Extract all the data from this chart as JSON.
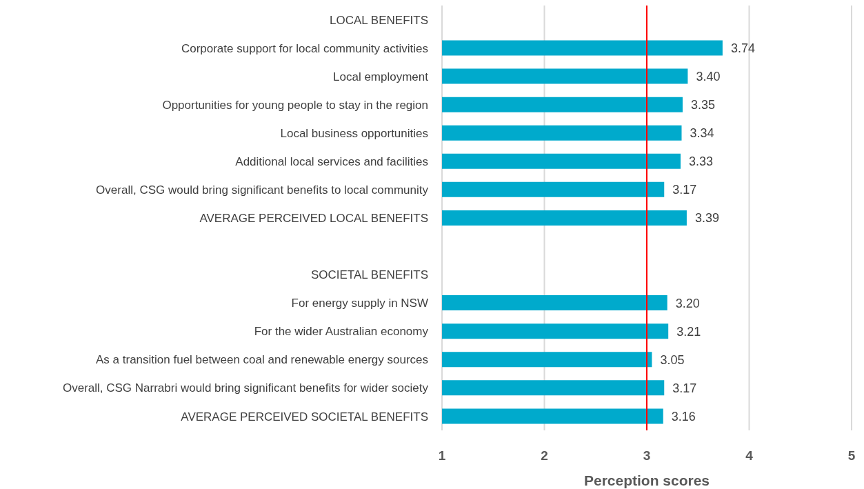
{
  "chart_data": {
    "type": "bar",
    "orientation": "horizontal",
    "categories": [
      "LOCAL BENEFITS",
      "Corporate support for local community activities",
      "Local employment",
      "Opportunities for young people to stay in the region",
      "Local business opportunities",
      "Additional local services and facilities",
      "Overall, CSG would bring significant benefits to local community",
      "AVERAGE PERCEIVED LOCAL BENEFITS",
      null,
      "SOCIETAL BENEFITS",
      "For energy supply in NSW",
      "For the wider Australian economy",
      "As a transition fuel between coal and renewable energy sources",
      "Overall, CSG Narrabri would bring significant benefits for wider society",
      "AVERAGE PERCEIVED SOCIETAL BENEFITS"
    ],
    "values": [
      null,
      3.74,
      3.4,
      3.35,
      3.34,
      3.33,
      3.17,
      3.39,
      null,
      null,
      3.2,
      3.21,
      3.05,
      3.17,
      3.16
    ],
    "value_labels": [
      null,
      "3.74",
      "3.40",
      "3.35",
      "3.34",
      "3.33",
      "3.17",
      "3.39",
      null,
      null,
      "3.20",
      "3.21",
      "3.05",
      "3.17",
      "3.16"
    ],
    "color": "#00aacc",
    "xlim": [
      1,
      5
    ],
    "xticks": [
      1,
      2,
      3,
      4,
      5
    ],
    "xlabel": "Perception scores",
    "grid": "x",
    "ref_lines": [
      {
        "axis": "x",
        "value": 3,
        "color": "#ff0000"
      }
    ]
  }
}
